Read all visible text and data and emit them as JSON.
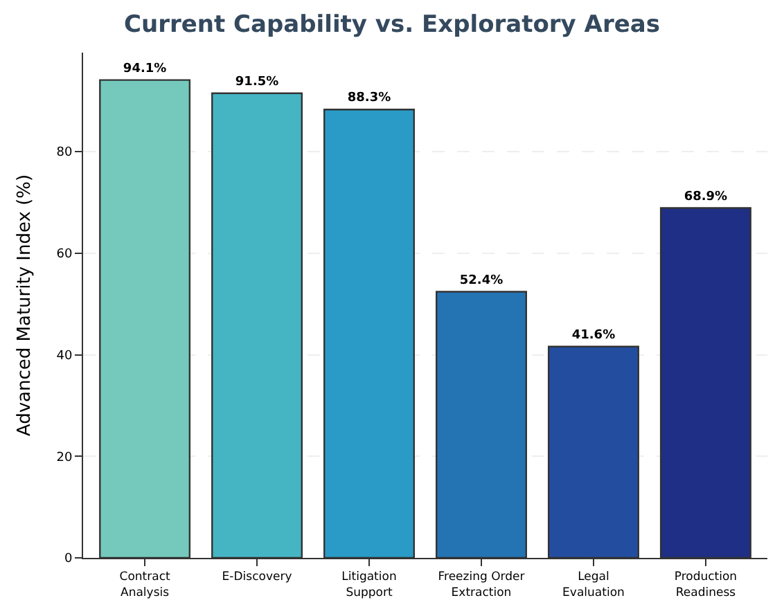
{
  "chart_data": {
    "type": "bar",
    "title": "Current Capability vs. Exploratory Areas",
    "ylabel": "Advanced Maturity Index (%)",
    "categories": [
      "Contract\nAnalysis",
      "E-Discovery",
      "Litigation\nSupport",
      "Freezing Order\nExtraction",
      "Legal\nEvaluation",
      "Production\nReadiness"
    ],
    "values": [
      94.1,
      91.5,
      88.3,
      52.4,
      41.6,
      68.9
    ],
    "value_labels": [
      "94.1%",
      "91.5%",
      "88.3%",
      "52.4%",
      "41.6%",
      "68.9%"
    ],
    "colors": [
      "#74c9bc",
      "#45b5c4",
      "#2a9bc6",
      "#2474b4",
      "#234ea0",
      "#1e2f85"
    ],
    "ylim": [
      0,
      99.5
    ],
    "yticks": [
      0,
      20,
      40,
      60,
      80
    ],
    "grid": "y",
    "legend": false
  }
}
